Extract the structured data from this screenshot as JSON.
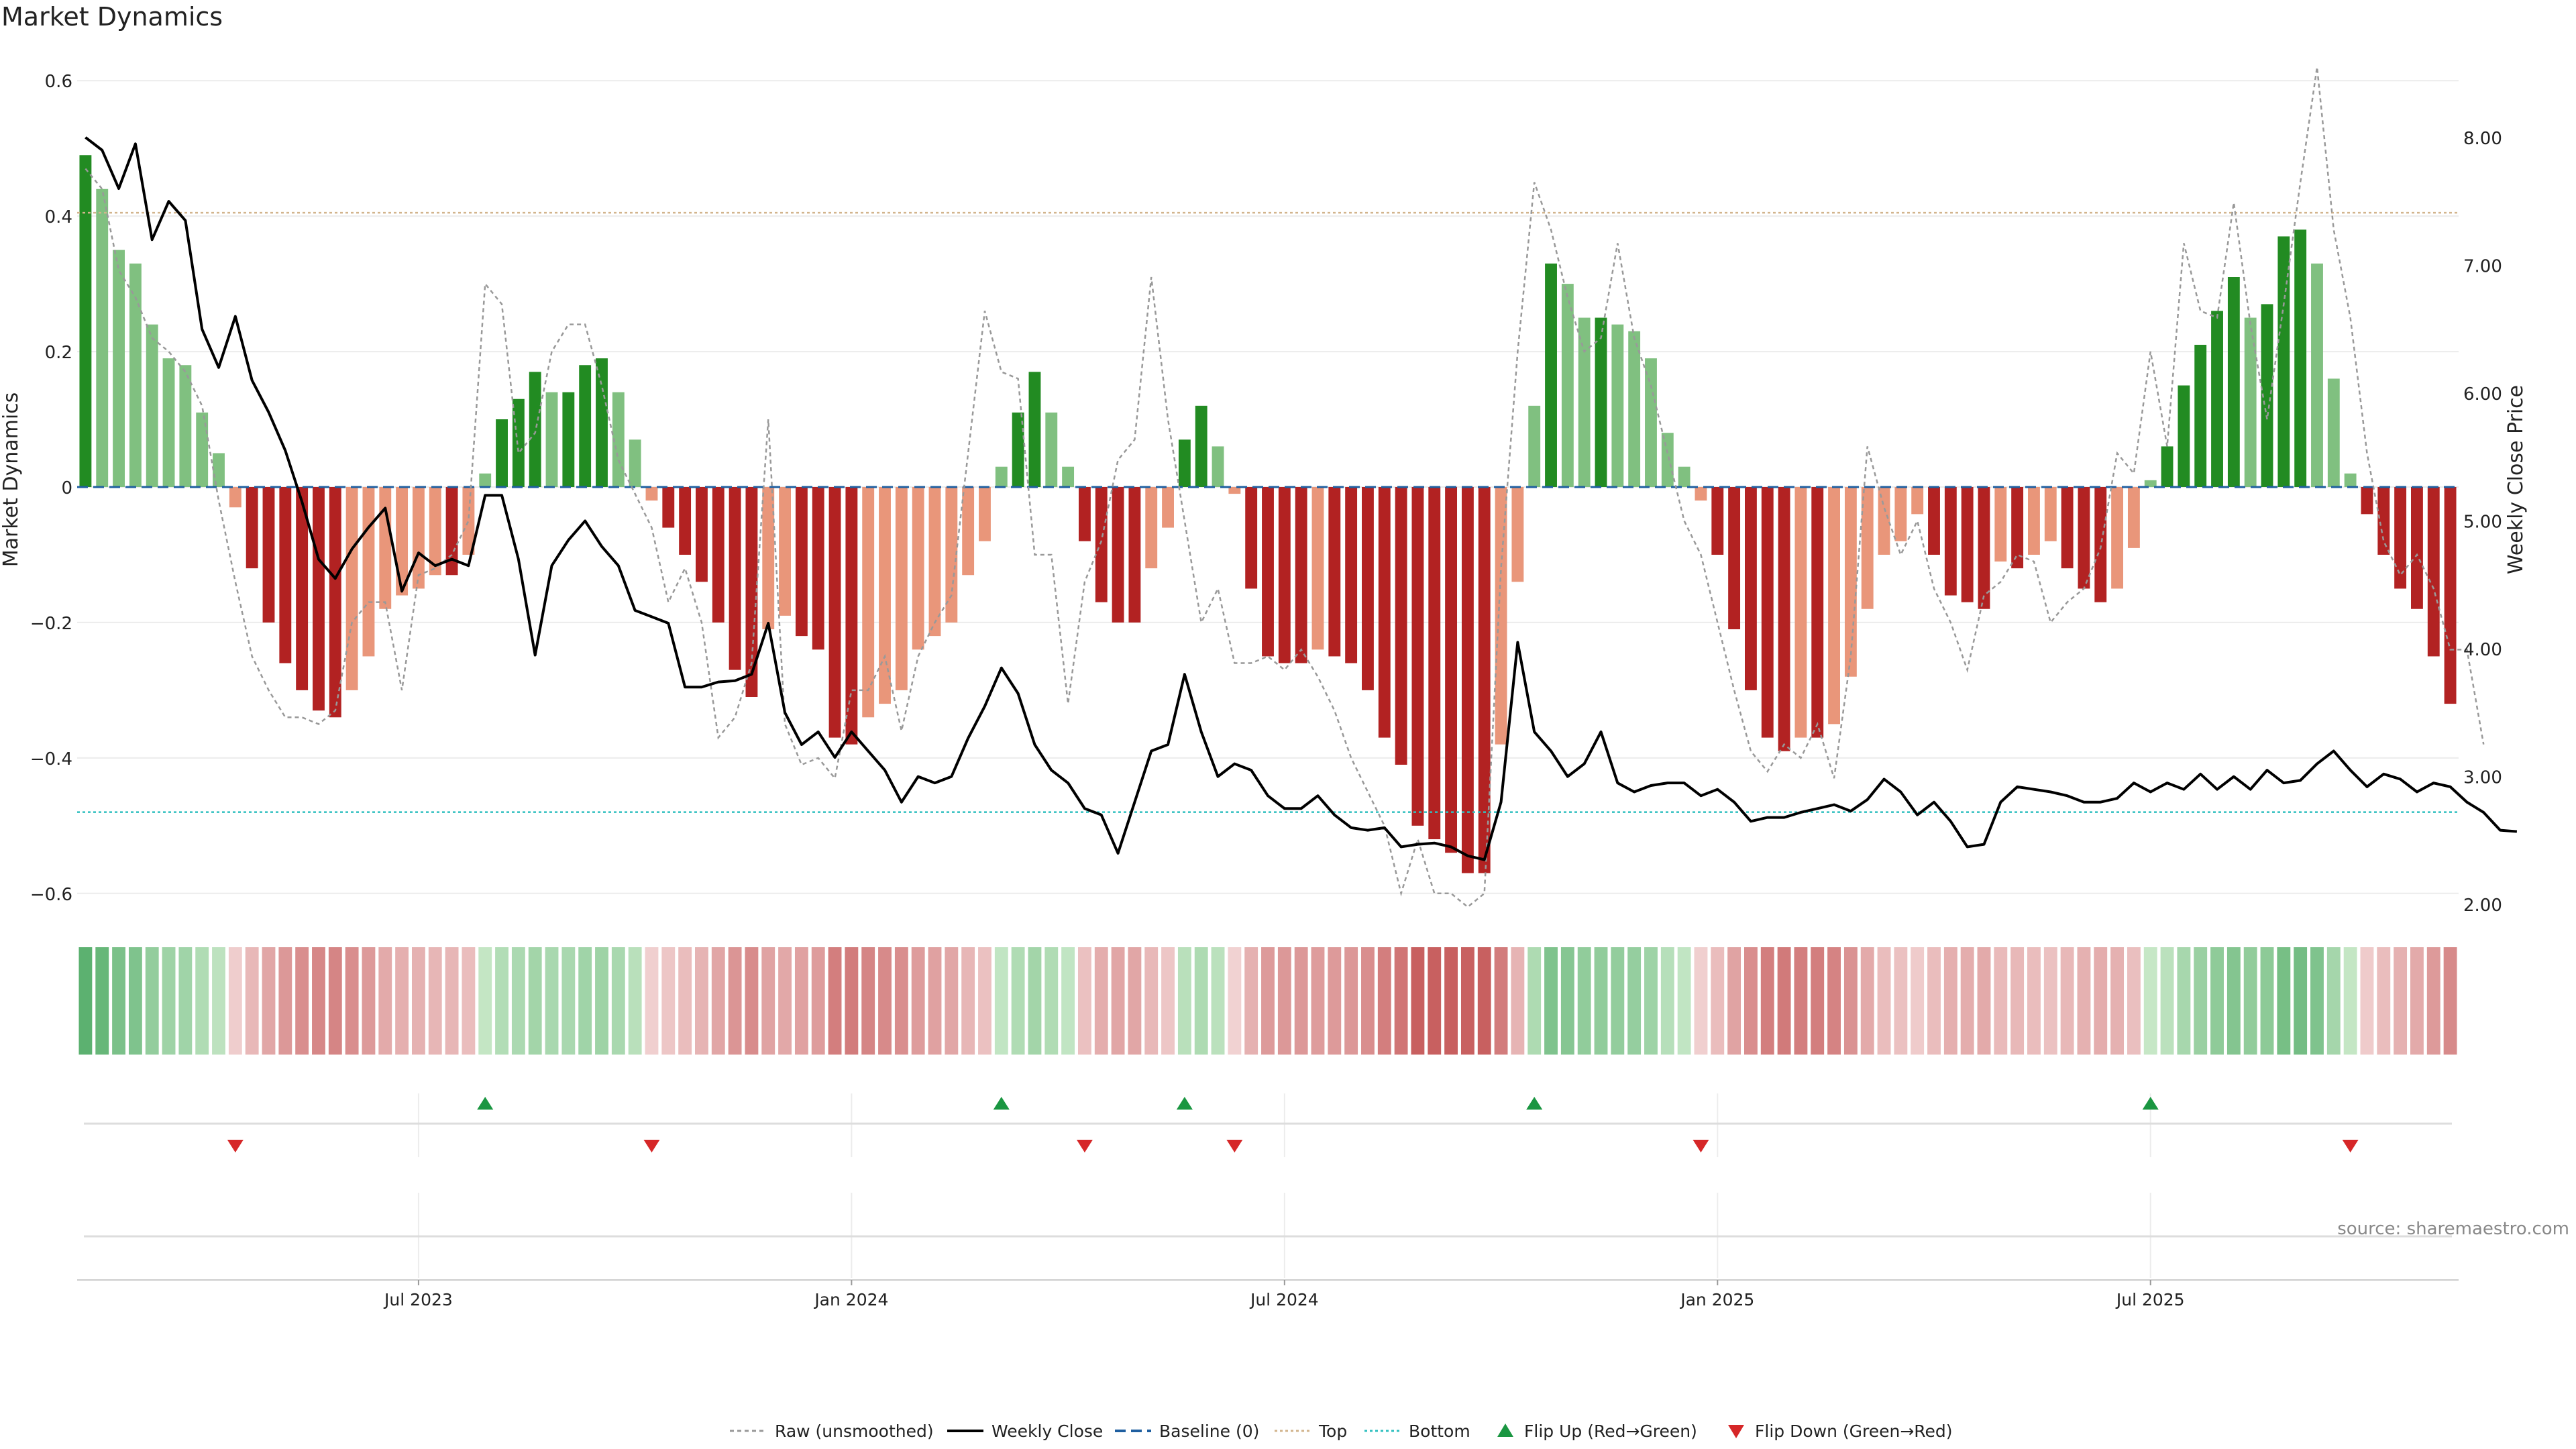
{
  "page": {
    "title": "Market Dynamics",
    "source": "source: sharemaestro.com"
  },
  "colors": {
    "strong_green": "#228b22",
    "light_green": "#80c080",
    "strong_red": "#b22222",
    "light_red": "#e9967a",
    "close_line": "#000000",
    "raw_line": "#999999",
    "baseline": "#1f5fa0",
    "top": "#d2b48c",
    "bottom": "#30c0c0",
    "flip_up": "#1a9641",
    "flip_down": "#d62728",
    "grid": "#ececec",
    "source": "#888888"
  },
  "legend": {
    "raw": "Raw (unsmoothed)",
    "close": "Weekly Close",
    "baseline": "Baseline (0)",
    "top": "Top",
    "bottom": "Bottom",
    "flip_up": "Flip Up (Red→Green)",
    "flip_down": "Flip Down (Green→Red)"
  },
  "chart_data": {
    "type": "bar",
    "ylabel": "Market Dynamics",
    "y2label": "Weekly Close Price",
    "ylim": [
      -0.62,
      0.62
    ],
    "y_ticks": [
      {
        "v": 0.6,
        "label": "0.6"
      },
      {
        "v": 0.4,
        "label": "0.4"
      },
      {
        "v": 0.2,
        "label": "0.2"
      },
      {
        "v": 0,
        "label": "0"
      },
      {
        "v": -0.2,
        "label": "−0.2"
      },
      {
        "v": -0.4,
        "label": "−0.4"
      },
      {
        "v": -0.6,
        "label": "−0.6"
      }
    ],
    "y2lim": [
      1.98,
      8.55
    ],
    "y2_ticks": [
      {
        "v": 8,
        "label": "8.00"
      },
      {
        "v": 7,
        "label": "7.00"
      },
      {
        "v": 6,
        "label": "6.00"
      },
      {
        "v": 5,
        "label": "5.00"
      },
      {
        "v": 4,
        "label": "4.00"
      },
      {
        "v": 3,
        "label": "3.00"
      },
      {
        "v": 2,
        "label": "2.00"
      }
    ],
    "top_threshold": 0.405,
    "bottom_threshold": -0.48,
    "x_ticks": [
      {
        "i": 20,
        "label": "Jul 2023"
      },
      {
        "i": 46,
        "label": "Jan 2024"
      },
      {
        "i": 72,
        "label": "Jul 2024"
      },
      {
        "i": 98,
        "label": "Jan 2025"
      },
      {
        "i": 124,
        "label": "Jul 2025"
      }
    ],
    "smoothed": [
      0.49,
      0.44,
      0.35,
      0.33,
      0.24,
      0.19,
      0.18,
      0.11,
      0.05,
      -0.03,
      -0.12,
      -0.2,
      -0.26,
      -0.3,
      -0.33,
      -0.34,
      -0.3,
      -0.25,
      -0.18,
      -0.16,
      -0.15,
      -0.13,
      -0.13,
      -0.1,
      0.02,
      0.1,
      0.13,
      0.17,
      0.14,
      0.14,
      0.18,
      0.19,
      0.14,
      0.07,
      -0.02,
      -0.06,
      -0.1,
      -0.14,
      -0.2,
      -0.27,
      -0.31,
      -0.21,
      -0.19,
      -0.22,
      -0.24,
      -0.37,
      -0.38,
      -0.34,
      -0.32,
      -0.3,
      -0.24,
      -0.22,
      -0.2,
      -0.13,
      -0.08,
      0.03,
      0.11,
      0.17,
      0.11,
      0.03,
      -0.08,
      -0.17,
      -0.2,
      -0.2,
      -0.12,
      -0.06,
      0.07,
      0.12,
      0.06,
      -0.01,
      -0.15,
      -0.25,
      -0.26,
      -0.26,
      -0.24,
      -0.25,
      -0.26,
      -0.3,
      -0.37,
      -0.41,
      -0.5,
      -0.52,
      -0.54,
      -0.57,
      -0.57,
      -0.38,
      -0.14,
      0.12,
      0.33,
      0.3,
      0.25,
      0.25,
      0.24,
      0.23,
      0.19,
      0.08,
      0.03,
      -0.02,
      -0.1,
      -0.21,
      -0.3,
      -0.37,
      -0.39,
      -0.37,
      -0.37,
      -0.35,
      -0.28,
      -0.18,
      -0.1,
      -0.08,
      -0.04,
      -0.1,
      -0.16,
      -0.17,
      -0.18,
      -0.11,
      -0.12,
      -0.1,
      -0.08,
      -0.12,
      -0.15,
      -0.17,
      -0.15,
      -0.09,
      0.01,
      0.06,
      0.15,
      0.21,
      0.26,
      0.31,
      0.25,
      0.27,
      0.37,
      0.38,
      0.33,
      0.16,
      0.02,
      -0.04,
      -0.1,
      -0.15,
      -0.18,
      -0.25,
      -0.32
    ],
    "raw": [
      0.47,
      0.44,
      0.32,
      0.28,
      0.22,
      0.2,
      0.17,
      0.12,
      -0.02,
      -0.14,
      -0.25,
      -0.3,
      -0.34,
      -0.34,
      -0.35,
      -0.33,
      -0.2,
      -0.17,
      -0.17,
      -0.3,
      -0.13,
      -0.12,
      -0.1,
      -0.05,
      0.3,
      0.27,
      0.05,
      0.08,
      0.2,
      0.24,
      0.24,
      0.15,
      0.04,
      -0.01,
      -0.06,
      -0.17,
      -0.12,
      -0.2,
      -0.37,
      -0.34,
      -0.26,
      0.1,
      -0.35,
      -0.41,
      -0.4,
      -0.43,
      -0.3,
      -0.3,
      -0.25,
      -0.36,
      -0.25,
      -0.2,
      -0.16,
      0.05,
      0.26,
      0.17,
      0.16,
      -0.1,
      -0.1,
      -0.32,
      -0.14,
      -0.08,
      0.04,
      0.07,
      0.31,
      0.1,
      -0.05,
      -0.2,
      -0.15,
      -0.26,
      -0.26,
      -0.25,
      -0.27,
      -0.24,
      -0.28,
      -0.33,
      -0.4,
      -0.45,
      -0.5,
      -0.6,
      -0.52,
      -0.6,
      -0.6,
      -0.62,
      -0.6,
      -0.12,
      0.2,
      0.45,
      0.38,
      0.28,
      0.2,
      0.22,
      0.36,
      0.22,
      0.15,
      0.05,
      -0.05,
      -0.1,
      -0.2,
      -0.3,
      -0.39,
      -0.42,
      -0.38,
      -0.4,
      -0.35,
      -0.43,
      -0.25,
      0.06,
      -0.03,
      -0.1,
      -0.05,
      -0.15,
      -0.2,
      -0.27,
      -0.16,
      -0.14,
      -0.1,
      -0.11,
      -0.2,
      -0.17,
      -0.15,
      -0.09,
      0.05,
      0.02,
      0.2,
      0.06,
      0.36,
      0.26,
      0.25,
      0.42,
      0.24,
      0.1,
      0.27,
      0.45,
      0.62,
      0.38,
      0.25,
      0.05,
      -0.08,
      -0.13,
      -0.1,
      -0.15,
      -0.24,
      -0.24,
      -0.38
    ],
    "close": [
      8.0,
      7.9,
      7.6,
      7.95,
      7.2,
      7.5,
      7.35,
      6.5,
      6.2,
      6.6,
      6.1,
      5.85,
      5.55,
      5.15,
      4.7,
      4.55,
      4.78,
      4.95,
      5.1,
      4.45,
      4.75,
      4.65,
      4.7,
      4.65,
      5.2,
      5.2,
      4.7,
      3.95,
      4.65,
      4.85,
      5.0,
      4.8,
      4.65,
      4.3,
      4.25,
      4.2,
      3.7,
      3.7,
      3.74,
      3.75,
      3.8,
      4.2,
      3.5,
      3.25,
      3.35,
      3.15,
      3.35,
      3.2,
      3.05,
      2.8,
      3.0,
      2.95,
      3.0,
      3.3,
      3.55,
      3.85,
      3.65,
      3.25,
      3.05,
      2.95,
      2.75,
      2.7,
      2.4,
      2.8,
      3.2,
      3.25,
      3.8,
      3.35,
      3.0,
      3.1,
      3.05,
      2.85,
      2.75,
      2.75,
      2.85,
      2.7,
      2.6,
      2.58,
      2.6,
      2.45,
      2.47,
      2.48,
      2.45,
      2.38,
      2.35,
      2.8,
      4.05,
      3.35,
      3.2,
      3.0,
      3.1,
      3.35,
      2.95,
      2.88,
      2.93,
      2.95,
      2.95,
      2.85,
      2.9,
      2.8,
      2.65,
      2.68,
      2.68,
      2.72,
      2.75,
      2.78,
      2.73,
      2.82,
      2.98,
      2.88,
      2.7,
      2.8,
      2.65,
      2.45,
      2.47,
      2.8,
      2.92,
      2.9,
      2.88,
      2.85,
      2.8,
      2.8,
      2.83,
      2.95,
      2.88,
      2.95,
      2.9,
      3.02,
      2.9,
      3.0,
      2.9,
      3.05,
      2.95,
      2.97,
      3.1,
      3.2,
      3.05,
      2.92,
      3.02,
      2.98,
      2.88,
      2.95,
      2.92,
      2.8,
      2.72,
      2.58,
      2.57
    ],
    "flip_up_index": [
      24,
      55,
      66,
      87,
      124
    ],
    "flip_down_index": [
      9,
      34,
      60,
      69,
      97,
      136
    ],
    "heat_strip": "per-period color strip mirroring Market Dynamics sign and strength"
  }
}
